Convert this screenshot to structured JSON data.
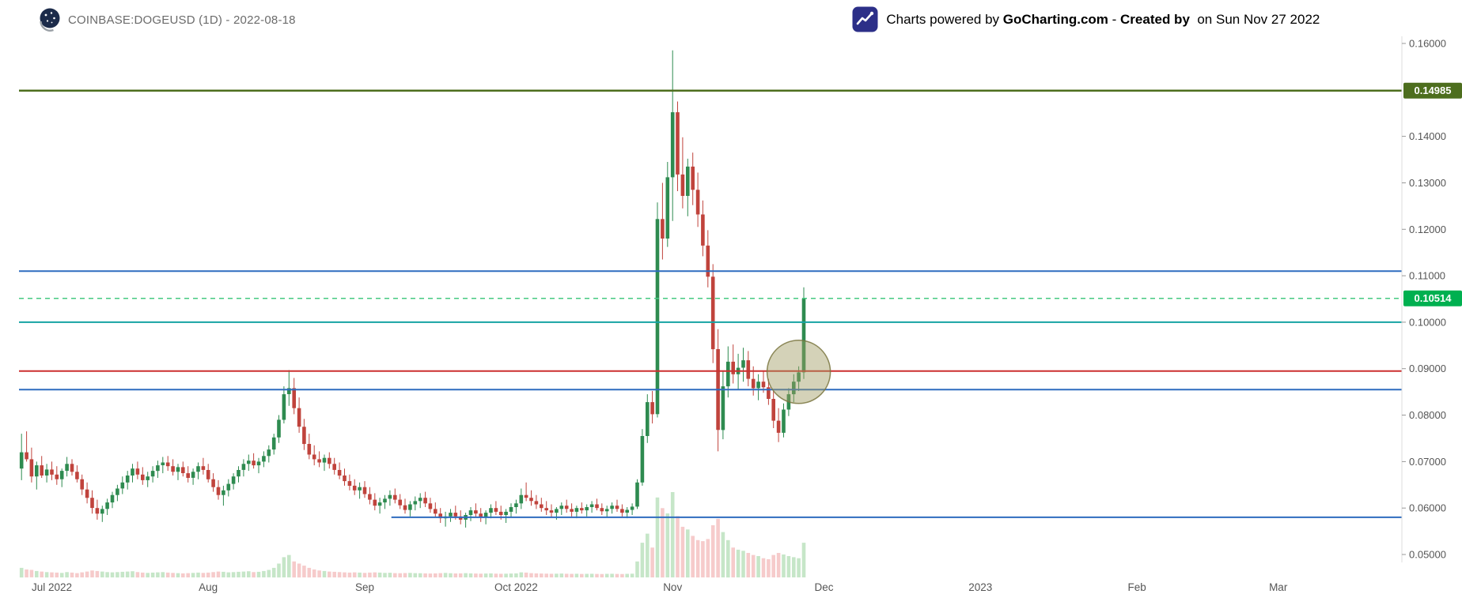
{
  "header": {
    "symbol_title": "COINBASE:DOGEUSD (1D) - 2022-08-18",
    "powered": {
      "prefix": "Charts powered by ",
      "brand": "GoCharting.com",
      "middle": " - ",
      "created": "Created by ",
      "suffix": " on Sun Nov 27 2022"
    }
  },
  "chart_data": {
    "type": "candlestick",
    "symbol": "COINBASE:DOGEUSD",
    "interval": "1D",
    "ylim": [
      0.05,
      0.16
    ],
    "grid": false,
    "colors": {
      "up": "#2e8b50",
      "down": "#c0433c",
      "vol_up": "rgba(129,199,132,0.45)",
      "vol_down": "rgba(235,140,140,0.45)",
      "axis_text": "#555555",
      "axis_line": "#dddddd"
    },
    "y_axis": {
      "ticks": [
        {
          "price": 0.16,
          "label": "0.16000"
        },
        {
          "price": 0.14,
          "label": "0.14000"
        },
        {
          "price": 0.13,
          "label": "0.13000"
        },
        {
          "price": 0.12,
          "label": "0.12000"
        },
        {
          "price": 0.11,
          "label": "0.11000"
        },
        {
          "price": 0.1,
          "label": "0.10000"
        },
        {
          "price": 0.09,
          "label": "0.09000"
        },
        {
          "price": 0.08,
          "label": "0.08000"
        },
        {
          "price": 0.07,
          "label": "0.07000"
        },
        {
          "price": 0.06,
          "label": "0.06000"
        },
        {
          "price": 0.05,
          "label": "0.05000"
        }
      ]
    },
    "x_axis": {
      "ticks": [
        {
          "idx": 6,
          "label": "Jul 2022"
        },
        {
          "idx": 37,
          "label": "Aug"
        },
        {
          "idx": 68,
          "label": "Sep"
        },
        {
          "idx": 98,
          "label": "Oct 2022"
        },
        {
          "idx": 129,
          "label": "Nov"
        },
        {
          "idx": 159,
          "label": "Dec"
        },
        {
          "idx": 190,
          "label": "2023"
        },
        {
          "idx": 221,
          "label": "Feb"
        },
        {
          "idx": 249,
          "label": "Mar"
        }
      ]
    },
    "levels": [
      {
        "price": 0.14985,
        "color": "#4d6e1e",
        "width": 2.5,
        "style": "solid",
        "badge": "0.14985",
        "badge_color": "#4d6e1e"
      },
      {
        "price": 0.111,
        "color": "#2e6cbf",
        "width": 2,
        "style": "solid"
      },
      {
        "price": 0.10514,
        "color": "#45c981",
        "width": 1.5,
        "style": "dashed",
        "badge": "0.10514",
        "badge_color": "#00b050"
      },
      {
        "price": 0.1,
        "color": "#16a3a3",
        "width": 2,
        "style": "solid"
      },
      {
        "price": 0.0895,
        "color": "#cc2f2f",
        "width": 2,
        "style": "solid"
      },
      {
        "price": 0.0855,
        "color": "#2e6cbf",
        "width": 2,
        "style": "solid"
      },
      {
        "price": 0.058,
        "color": "#2e6cbf",
        "width": 2,
        "style": "solid",
        "start_idx": 74
      }
    ],
    "annotations": [
      {
        "shape": "circle",
        "center_idx": 154,
        "center_price": 0.0893,
        "radius_px": 40,
        "fill": "rgba(160,156,98,0.45)",
        "stroke": "rgba(122,118,64,0.85)"
      }
    ],
    "candles_format": [
      "open",
      "high",
      "low",
      "close",
      "volume"
    ],
    "candles": [
      [
        0.0685,
        0.076,
        0.066,
        0.072,
        180
      ],
      [
        0.072,
        0.0765,
        0.07,
        0.0705,
        150
      ],
      [
        0.0705,
        0.073,
        0.0655,
        0.0668,
        140
      ],
      [
        0.0668,
        0.07,
        0.064,
        0.0692,
        120
      ],
      [
        0.0692,
        0.0712,
        0.0665,
        0.067,
        110
      ],
      [
        0.067,
        0.0695,
        0.0655,
        0.0683,
        100
      ],
      [
        0.0683,
        0.07,
        0.066,
        0.0672,
        95
      ],
      [
        0.0672,
        0.069,
        0.065,
        0.0662,
        90
      ],
      [
        0.0662,
        0.0685,
        0.0645,
        0.068,
        85
      ],
      [
        0.068,
        0.071,
        0.0668,
        0.0695,
        100
      ],
      [
        0.0695,
        0.0705,
        0.067,
        0.0678,
        90
      ],
      [
        0.0678,
        0.0692,
        0.0655,
        0.0662,
        80
      ],
      [
        0.0662,
        0.0672,
        0.0628,
        0.064,
        95
      ],
      [
        0.064,
        0.0655,
        0.061,
        0.0622,
        110
      ],
      [
        0.0622,
        0.0638,
        0.0588,
        0.06,
        130
      ],
      [
        0.06,
        0.0618,
        0.0575,
        0.0588,
        120
      ],
      [
        0.0588,
        0.0605,
        0.057,
        0.0598,
        110
      ],
      [
        0.0598,
        0.062,
        0.0585,
        0.0612,
        100
      ],
      [
        0.0612,
        0.0635,
        0.06,
        0.0628,
        95
      ],
      [
        0.0628,
        0.065,
        0.0615,
        0.0642,
        100
      ],
      [
        0.0642,
        0.0668,
        0.063,
        0.0655,
        105
      ],
      [
        0.0655,
        0.068,
        0.064,
        0.067,
        110
      ],
      [
        0.067,
        0.0695,
        0.0655,
        0.0685,
        115
      ],
      [
        0.0685,
        0.07,
        0.0662,
        0.0672,
        100
      ],
      [
        0.0672,
        0.0688,
        0.065,
        0.066,
        90
      ],
      [
        0.066,
        0.0678,
        0.0645,
        0.0668,
        85
      ],
      [
        0.0668,
        0.069,
        0.0655,
        0.068,
        90
      ],
      [
        0.068,
        0.0702,
        0.0665,
        0.0692,
        95
      ],
      [
        0.0692,
        0.071,
        0.0675,
        0.0698,
        100
      ],
      [
        0.0698,
        0.0712,
        0.068,
        0.069,
        90
      ],
      [
        0.069,
        0.0705,
        0.067,
        0.0678,
        85
      ],
      [
        0.0678,
        0.0695,
        0.066,
        0.0688,
        80
      ],
      [
        0.0688,
        0.07,
        0.0668,
        0.0675,
        75
      ],
      [
        0.0675,
        0.069,
        0.0655,
        0.0665,
        80
      ],
      [
        0.0665,
        0.0685,
        0.065,
        0.0678,
        85
      ],
      [
        0.0678,
        0.0698,
        0.0662,
        0.069,
        90
      ],
      [
        0.069,
        0.0708,
        0.0672,
        0.0682,
        85
      ],
      [
        0.0682,
        0.0695,
        0.0655,
        0.0662,
        90
      ],
      [
        0.0662,
        0.0675,
        0.0635,
        0.0645,
        100
      ],
      [
        0.0645,
        0.066,
        0.0618,
        0.0628,
        110
      ],
      [
        0.0628,
        0.0648,
        0.0605,
        0.0638,
        105
      ],
      [
        0.0638,
        0.0662,
        0.0625,
        0.0652,
        95
      ],
      [
        0.0652,
        0.0675,
        0.064,
        0.0668,
        100
      ],
      [
        0.0668,
        0.069,
        0.0655,
        0.0682,
        105
      ],
      [
        0.0682,
        0.0705,
        0.0668,
        0.0695,
        110
      ],
      [
        0.0695,
        0.0715,
        0.068,
        0.0702,
        115
      ],
      [
        0.0702,
        0.0718,
        0.0685,
        0.0692,
        100
      ],
      [
        0.0692,
        0.0708,
        0.0675,
        0.07,
        105
      ],
      [
        0.07,
        0.0722,
        0.0688,
        0.0712,
        120
      ],
      [
        0.0712,
        0.0735,
        0.0698,
        0.0726,
        140
      ],
      [
        0.0726,
        0.076,
        0.0715,
        0.0752,
        180
      ],
      [
        0.0752,
        0.08,
        0.074,
        0.079,
        260
      ],
      [
        0.079,
        0.0862,
        0.0782,
        0.0845,
        380
      ],
      [
        0.0845,
        0.0897,
        0.082,
        0.0858,
        420
      ],
      [
        0.0858,
        0.088,
        0.0802,
        0.0815,
        300
      ],
      [
        0.0815,
        0.0838,
        0.0762,
        0.0775,
        260
      ],
      [
        0.0775,
        0.0792,
        0.0725,
        0.0738,
        220
      ],
      [
        0.0738,
        0.076,
        0.0705,
        0.0715,
        180
      ],
      [
        0.0715,
        0.0735,
        0.0692,
        0.0705,
        150
      ],
      [
        0.0705,
        0.0722,
        0.0688,
        0.0698,
        130
      ],
      [
        0.0698,
        0.0715,
        0.068,
        0.0708,
        120
      ],
      [
        0.0708,
        0.072,
        0.0685,
        0.0695,
        110
      ],
      [
        0.0695,
        0.0708,
        0.0672,
        0.0682,
        105
      ],
      [
        0.0682,
        0.0698,
        0.0662,
        0.067,
        100
      ],
      [
        0.067,
        0.0685,
        0.0648,
        0.0658,
        95
      ],
      [
        0.0658,
        0.0672,
        0.0638,
        0.0648,
        90
      ],
      [
        0.0648,
        0.0662,
        0.0628,
        0.0638,
        95
      ],
      [
        0.0638,
        0.0655,
        0.062,
        0.0645,
        90
      ],
      [
        0.0645,
        0.0658,
        0.0622,
        0.063,
        85
      ],
      [
        0.063,
        0.0645,
        0.0608,
        0.0618,
        90
      ],
      [
        0.0618,
        0.0632,
        0.0595,
        0.0605,
        95
      ],
      [
        0.0605,
        0.0622,
        0.0588,
        0.0612,
        90
      ],
      [
        0.0612,
        0.0628,
        0.0598,
        0.062,
        85
      ],
      [
        0.062,
        0.0638,
        0.0605,
        0.0628,
        88
      ],
      [
        0.0628,
        0.0642,
        0.061,
        0.0618,
        80
      ],
      [
        0.0618,
        0.063,
        0.0598,
        0.0606,
        78
      ],
      [
        0.0606,
        0.062,
        0.0588,
        0.0596,
        82
      ],
      [
        0.0596,
        0.0615,
        0.0582,
        0.0608,
        85
      ],
      [
        0.0608,
        0.0625,
        0.0595,
        0.0615,
        80
      ],
      [
        0.0615,
        0.0632,
        0.06,
        0.0622,
        78
      ],
      [
        0.0622,
        0.0635,
        0.0602,
        0.061,
        75
      ],
      [
        0.061,
        0.0622,
        0.059,
        0.0598,
        72
      ],
      [
        0.0598,
        0.0612,
        0.058,
        0.0588,
        76
      ],
      [
        0.0588,
        0.06,
        0.0568,
        0.0578,
        80
      ],
      [
        0.0578,
        0.0592,
        0.056,
        0.0582,
        85
      ],
      [
        0.0582,
        0.0598,
        0.057,
        0.059,
        78
      ],
      [
        0.059,
        0.0605,
        0.0575,
        0.0582,
        74
      ],
      [
        0.0582,
        0.0595,
        0.0565,
        0.0575,
        76
      ],
      [
        0.0575,
        0.059,
        0.0558,
        0.0585,
        80
      ],
      [
        0.0585,
        0.0602,
        0.0572,
        0.0595,
        75
      ],
      [
        0.0595,
        0.061,
        0.058,
        0.0588,
        72
      ],
      [
        0.0588,
        0.06,
        0.057,
        0.058,
        70
      ],
      [
        0.058,
        0.0595,
        0.0565,
        0.059,
        72
      ],
      [
        0.059,
        0.0608,
        0.0578,
        0.06,
        75
      ],
      [
        0.06,
        0.0615,
        0.0585,
        0.0592,
        70
      ],
      [
        0.0592,
        0.0605,
        0.0575,
        0.0585,
        68
      ],
      [
        0.0585,
        0.0598,
        0.0568,
        0.0592,
        70
      ],
      [
        0.0592,
        0.061,
        0.058,
        0.0602,
        72
      ],
      [
        0.0602,
        0.0618,
        0.0588,
        0.061,
        75
      ],
      [
        0.061,
        0.0642,
        0.0598,
        0.0628,
        95
      ],
      [
        0.0628,
        0.0655,
        0.0615,
        0.0622,
        90
      ],
      [
        0.0622,
        0.0638,
        0.0605,
        0.0615,
        80
      ],
      [
        0.0615,
        0.0628,
        0.0598,
        0.0608,
        75
      ],
      [
        0.0608,
        0.0622,
        0.0592,
        0.06,
        72
      ],
      [
        0.06,
        0.0615,
        0.0585,
        0.0595,
        70
      ],
      [
        0.0595,
        0.0608,
        0.058,
        0.059,
        68
      ],
      [
        0.059,
        0.0602,
        0.0575,
        0.0598,
        70
      ],
      [
        0.0598,
        0.0612,
        0.0585,
        0.0605,
        72
      ],
      [
        0.0605,
        0.0618,
        0.059,
        0.0598,
        68
      ],
      [
        0.0598,
        0.061,
        0.0582,
        0.0592,
        66
      ],
      [
        0.0592,
        0.0605,
        0.0578,
        0.06,
        68
      ],
      [
        0.06,
        0.0612,
        0.0588,
        0.0595,
        65
      ],
      [
        0.0595,
        0.0608,
        0.0582,
        0.0602,
        66
      ],
      [
        0.0602,
        0.0615,
        0.059,
        0.0608,
        68
      ],
      [
        0.0608,
        0.062,
        0.0595,
        0.06,
        65
      ],
      [
        0.06,
        0.061,
        0.0585,
        0.0593,
        64
      ],
      [
        0.0593,
        0.0605,
        0.058,
        0.0598,
        66
      ],
      [
        0.0598,
        0.0612,
        0.0588,
        0.0605,
        68
      ],
      [
        0.0605,
        0.0618,
        0.0592,
        0.0598,
        65
      ],
      [
        0.0598,
        0.0608,
        0.0582,
        0.059,
        64
      ],
      [
        0.059,
        0.0602,
        0.0578,
        0.0596,
        66
      ],
      [
        0.0596,
        0.061,
        0.0585,
        0.0603,
        70
      ],
      [
        0.0603,
        0.0662,
        0.0598,
        0.0655,
        300
      ],
      [
        0.0655,
        0.077,
        0.0648,
        0.0755,
        650
      ],
      [
        0.0755,
        0.0845,
        0.074,
        0.0828,
        820
      ],
      [
        0.0828,
        0.0852,
        0.0782,
        0.0802,
        560
      ],
      [
        0.0802,
        0.1258,
        0.0795,
        0.1222,
        1500
      ],
      [
        0.1222,
        0.13,
        0.1135,
        0.118,
        1300
      ],
      [
        0.118,
        0.1345,
        0.1162,
        0.1312,
        1200
      ],
      [
        0.1312,
        0.1585,
        0.1218,
        0.1452,
        1600
      ],
      [
        0.1452,
        0.1475,
        0.1282,
        0.1318,
        1150
      ],
      [
        0.1318,
        0.1398,
        0.1245,
        0.1272,
        950
      ],
      [
        0.1272,
        0.1352,
        0.1228,
        0.1335,
        900
      ],
      [
        0.1335,
        0.1365,
        0.1252,
        0.1285,
        780
      ],
      [
        0.1285,
        0.1322,
        0.1205,
        0.1232,
        700
      ],
      [
        0.1232,
        0.1262,
        0.1142,
        0.1165,
        680
      ],
      [
        0.1165,
        0.1198,
        0.1075,
        0.1098,
        720
      ],
      [
        0.1098,
        0.1125,
        0.0912,
        0.0942,
        980
      ],
      [
        0.0942,
        0.0985,
        0.0722,
        0.0768,
        1100
      ],
      [
        0.0768,
        0.0895,
        0.0748,
        0.0862,
        850
      ],
      [
        0.0862,
        0.0948,
        0.0838,
        0.0915,
        700
      ],
      [
        0.0915,
        0.0952,
        0.0868,
        0.0888,
        560
      ],
      [
        0.0888,
        0.0932,
        0.0855,
        0.0902,
        520
      ],
      [
        0.0902,
        0.0945,
        0.0872,
        0.0918,
        500
      ],
      [
        0.0918,
        0.0938,
        0.0862,
        0.0878,
        460
      ],
      [
        0.0878,
        0.0905,
        0.0842,
        0.0858,
        420
      ],
      [
        0.0858,
        0.0888,
        0.0832,
        0.0872,
        400
      ],
      [
        0.0872,
        0.0895,
        0.0848,
        0.086,
        360
      ],
      [
        0.086,
        0.0878,
        0.0822,
        0.0835,
        340
      ],
      [
        0.0835,
        0.0852,
        0.0772,
        0.0788,
        420
      ],
      [
        0.0788,
        0.0815,
        0.0742,
        0.0762,
        460
      ],
      [
        0.0762,
        0.0825,
        0.0752,
        0.0812,
        430
      ],
      [
        0.0812,
        0.0858,
        0.0798,
        0.0845,
        400
      ],
      [
        0.0845,
        0.0888,
        0.0828,
        0.0872,
        380
      ],
      [
        0.0872,
        0.0905,
        0.0852,
        0.0892,
        360
      ],
      [
        0.0892,
        0.1075,
        0.0878,
        0.1051,
        650
      ]
    ]
  }
}
